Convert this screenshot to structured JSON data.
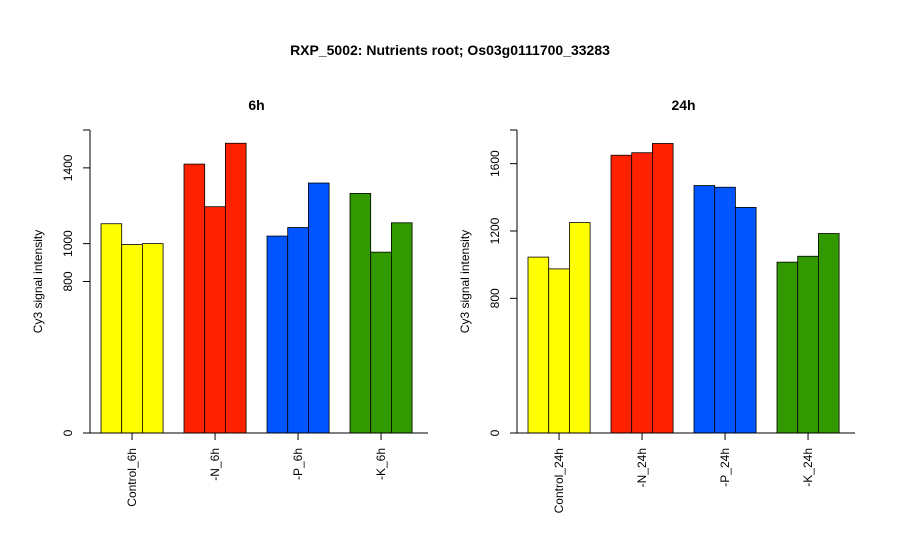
{
  "figure": {
    "title": "RXP_5002: Nutrients root; Os03g0111700_33283",
    "background": "#ffffff"
  },
  "chart_data": [
    {
      "type": "bar",
      "title": "6h",
      "xlabel": "",
      "ylabel": "Cy3 signal intensity",
      "categories": [
        "Control_6h",
        "-N_6h",
        "-P_6h",
        "-K_6h"
      ],
      "colors": [
        "#ffff00",
        "#ff2200",
        "#0055ff",
        "#339900"
      ],
      "series": [
        {
          "values": [
            1105,
            1420,
            1040,
            1265
          ]
        },
        {
          "values": [
            995,
            1195,
            1085,
            955
          ]
        },
        {
          "values": [
            1000,
            1530,
            1320,
            1110
          ]
        }
      ],
      "ylim": [
        0,
        1600
      ],
      "yticks": [
        0,
        800,
        1000,
        1400
      ],
      "grid": false,
      "legend": "none"
    },
    {
      "type": "bar",
      "title": "24h",
      "xlabel": "",
      "ylabel": "Cy3 signal intensity",
      "categories": [
        "Control_24h",
        "-N_24h",
        "-P_24h",
        "-K_24h"
      ],
      "colors": [
        "#ffff00",
        "#ff2200",
        "#0055ff",
        "#339900"
      ],
      "series": [
        {
          "values": [
            1045,
            1650,
            1470,
            1015
          ]
        },
        {
          "values": [
            975,
            1665,
            1460,
            1050
          ]
        },
        {
          "values": [
            1250,
            1720,
            1340,
            1185
          ]
        }
      ],
      "ylim": [
        0,
        1800
      ],
      "yticks": [
        0,
        800,
        1200,
        1600
      ],
      "grid": false,
      "legend": "none"
    }
  ]
}
